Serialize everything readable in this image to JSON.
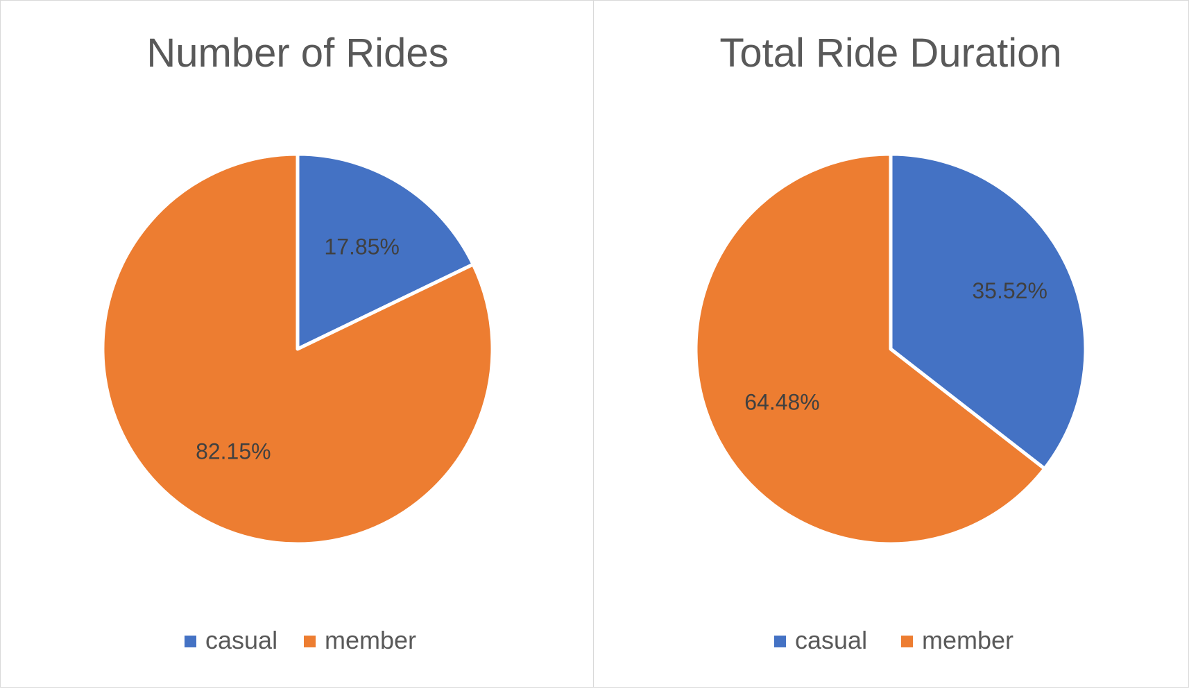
{
  "chart_data": [
    {
      "type": "pie",
      "title": "Number of Rides",
      "categories": [
        "casual",
        "member"
      ],
      "values": [
        17.85,
        82.15
      ],
      "labels": [
        "17.85%",
        "82.15%"
      ],
      "colors": [
        "#4472C4",
        "#ED7D31"
      ],
      "legend": "bottom",
      "start_angle": "12 o'clock, clockwise"
    },
    {
      "type": "pie",
      "title": "Total Ride Duration",
      "categories": [
        "casual",
        "member"
      ],
      "values": [
        35.52,
        64.48
      ],
      "labels": [
        "35.52%",
        "64.48%"
      ],
      "colors": [
        "#4472C4",
        "#ED7D31"
      ],
      "legend": "bottom",
      "start_angle": "12 o'clock, clockwise"
    }
  ]
}
